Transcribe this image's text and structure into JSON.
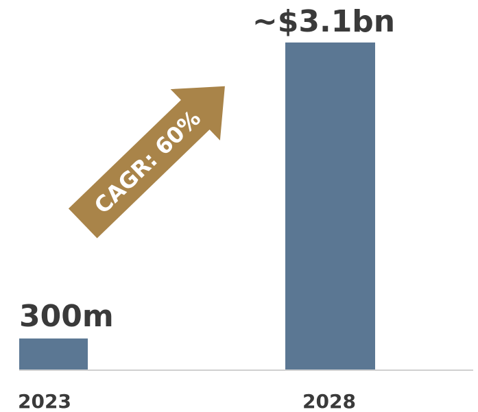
{
  "chart_data": {
    "type": "bar",
    "categories": [
      "2023",
      "2028"
    ],
    "values": [
      0.3,
      3.1
    ],
    "data_labels": [
      "300m",
      "~$3.1bn"
    ],
    "annotation": "CAGR: 60%",
    "colors": {
      "bar": "#5b7793",
      "arrow": "#a98449",
      "axis": "#d0d0d0",
      "text": "#3a3a3a"
    },
    "grid": false,
    "legend": "none"
  }
}
